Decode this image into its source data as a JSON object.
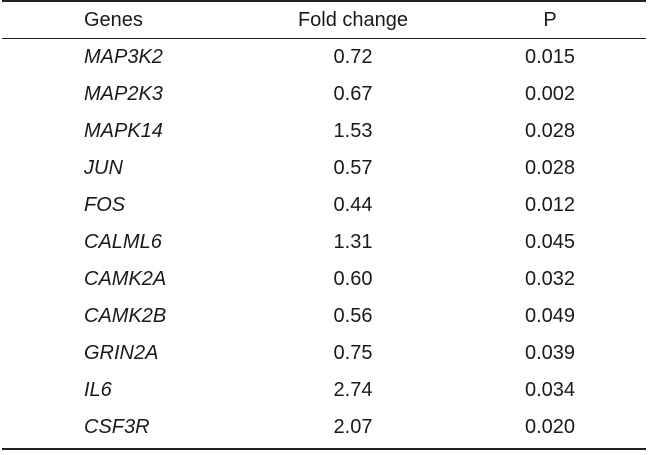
{
  "table": {
    "headers": {
      "genes": "Genes",
      "fold_change": "Fold change",
      "p": "P"
    },
    "rows": [
      {
        "gene": "MAP3K2",
        "fold_change": "0.72",
        "p": "0.015"
      },
      {
        "gene": "MAP2K3",
        "fold_change": "0.67",
        "p": "0.002"
      },
      {
        "gene": "MAPK14",
        "fold_change": "1.53",
        "p": "0.028"
      },
      {
        "gene": "JUN",
        "fold_change": "0.57",
        "p": "0.028"
      },
      {
        "gene": "FOS",
        "fold_change": "0.44",
        "p": "0.012"
      },
      {
        "gene": "CALML6",
        "fold_change": "1.31",
        "p": "0.045"
      },
      {
        "gene": "CAMK2A",
        "fold_change": "0.60",
        "p": "0.032"
      },
      {
        "gene": "CAMK2B",
        "fold_change": "0.56",
        "p": "0.049"
      },
      {
        "gene": "GRIN2A",
        "fold_change": "0.75",
        "p": "0.039"
      },
      {
        "gene": "IL6",
        "fold_change": "2.74",
        "p": "0.034"
      },
      {
        "gene": "CSF3R",
        "fold_change": "2.07",
        "p": "0.020"
      }
    ]
  }
}
